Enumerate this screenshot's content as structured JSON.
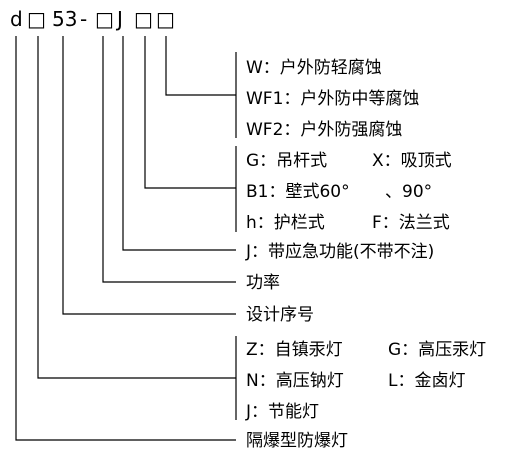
{
  "code": {
    "d": "d",
    "box1": "□",
    "n53": "53",
    "dash": "-",
    "box2": "□",
    "J": "J",
    "box3": "□",
    "box4": "□"
  },
  "groups": {
    "corrosion": [
      "W：户外防轻腐蚀",
      "WF1：户外防中等腐蚀",
      "WF2：户外防强腐蚀"
    ],
    "mounting": [
      "G：吊杆式",
      "X：吸顶式",
      "B1：壁式60°",
      "、90°",
      "h：护栏式",
      "F：法兰式"
    ],
    "emergency": "J：带应急功能(不带不注)",
    "power": "功率",
    "serial": "设计序号",
    "source": [
      "Z：自镇汞灯",
      "G：高压汞灯",
      "N：高压钠灯",
      "L：金卤灯",
      "J：节能灯"
    ],
    "type": "隔爆型防爆灯"
  }
}
